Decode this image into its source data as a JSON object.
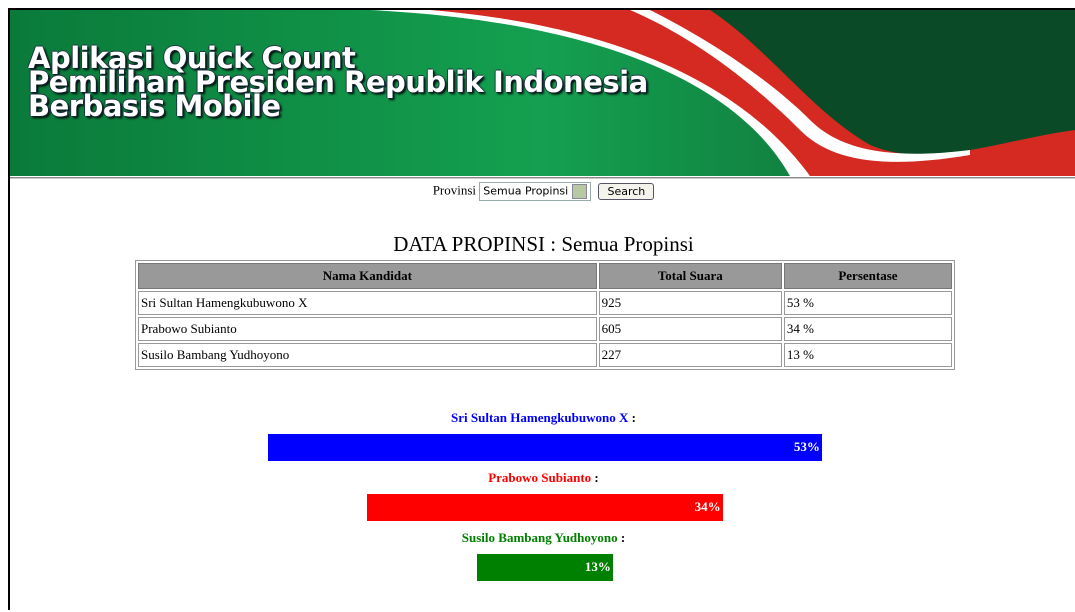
{
  "header": {
    "title_lines": [
      "Aplikasi Quick Count",
      "Pemilihan Presiden Republik Indonesia",
      "Berbasis Mobile"
    ]
  },
  "form": {
    "label": "Provinsi",
    "select": "Semua Propinsi",
    "button": "Search"
  },
  "table": {
    "title": "DATA PROPINSI : Semua Propinsi",
    "columns": [
      "Nama Kandidat",
      "Total Suara",
      "Persentase"
    ],
    "rows": [
      [
        "Sri Sultan Hamengkubuwono X",
        "925",
        "53 %"
      ],
      [
        "Prabowo Subianto",
        "605",
        "34 %"
      ],
      [
        "Susilo Bambang Yudhoyono",
        "227",
        "13 %"
      ]
    ]
  },
  "separator": ":",
  "bars": [
    {
      "name": "Sri Sultan Hamengkubuwono X",
      "value": 53,
      "label": "53%",
      "color": "#0000ff"
    },
    {
      "name": "Prabowo Subianto",
      "value": 34,
      "label": "34%",
      "color": "#ff0000"
    },
    {
      "name": "Susilo Bambang Yudhoyono",
      "value": 13,
      "label": "13%",
      "color": "#008000"
    }
  ]
}
